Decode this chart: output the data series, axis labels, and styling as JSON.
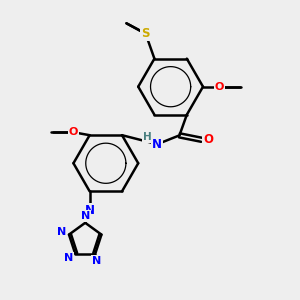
{
  "bg_color": "#eeeeee",
  "bond_color": "#000000",
  "bond_width": 1.8,
  "N_color": "#0000ff",
  "O_color": "#ff0000",
  "S_color": "#ccaa00",
  "H_color": "#4a8080",
  "C_color": "#000000",
  "figsize": [
    3.0,
    3.0
  ],
  "dpi": 100,
  "xlim": [
    0,
    10
  ],
  "ylim": [
    0,
    10
  ]
}
